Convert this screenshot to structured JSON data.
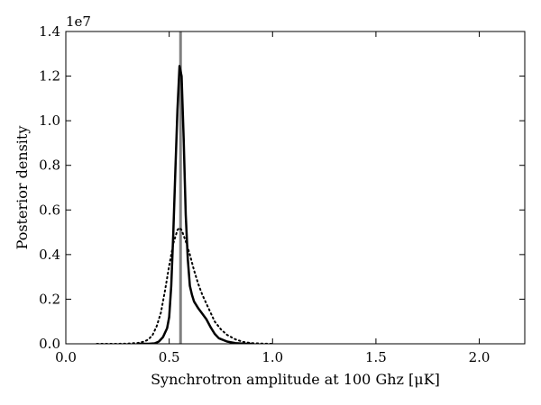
{
  "chart_data": {
    "type": "line",
    "xlabel": "Synchrotron amplitude at 100 Ghz [μK]",
    "ylabel": "Posterior density",
    "y_offset_label": "1e7",
    "xlim": [
      0.0,
      2.22
    ],
    "ylim": [
      0.0,
      1.4
    ],
    "xticks": [
      0.0,
      0.5,
      1.0,
      1.5,
      2.0
    ],
    "xtick_labels": [
      "0.0",
      "0.5",
      "1.0",
      "1.5",
      "2.0"
    ],
    "yticks": [
      0.0,
      0.2,
      0.4,
      0.6,
      0.8,
      1.0,
      1.2,
      1.4
    ],
    "ytick_labels": [
      "0.0",
      "0.2",
      "0.4",
      "0.6",
      "0.8",
      "1.0",
      "1.2",
      "1.4"
    ],
    "grid": false,
    "vertical_line": {
      "x": 0.555,
      "color": "#808080"
    },
    "series": [
      {
        "style": "solid",
        "color": "#000000",
        "x": [
          0.35,
          0.4,
          0.43,
          0.45,
          0.47,
          0.49,
          0.5,
          0.51,
          0.52,
          0.53,
          0.54,
          0.55,
          0.56,
          0.57,
          0.58,
          0.59,
          0.6,
          0.61,
          0.62,
          0.64,
          0.66,
          0.68,
          0.7,
          0.72,
          0.74,
          0.78,
          0.82,
          0.86,
          0.9
        ],
        "y": [
          0.0,
          0.0002,
          0.002,
          0.01,
          0.03,
          0.07,
          0.12,
          0.26,
          0.5,
          0.78,
          1.05,
          1.245,
          1.2,
          0.92,
          0.58,
          0.38,
          0.26,
          0.22,
          0.19,
          0.16,
          0.135,
          0.11,
          0.075,
          0.045,
          0.025,
          0.01,
          0.003,
          0.0005,
          0.0
        ]
      },
      {
        "style": "dotted",
        "color": "#000000",
        "x": [
          0.15,
          0.25,
          0.3,
          0.35,
          0.38,
          0.4,
          0.42,
          0.44,
          0.46,
          0.48,
          0.5,
          0.52,
          0.54,
          0.55,
          0.56,
          0.58,
          0.6,
          0.62,
          0.64,
          0.66,
          0.68,
          0.7,
          0.72,
          0.75,
          0.78,
          0.82,
          0.86,
          0.9,
          0.95,
          1.0
        ],
        "y": [
          0.0,
          0.0,
          0.001,
          0.004,
          0.01,
          0.02,
          0.04,
          0.08,
          0.14,
          0.24,
          0.35,
          0.45,
          0.51,
          0.52,
          0.51,
          0.46,
          0.4,
          0.33,
          0.27,
          0.22,
          0.18,
          0.14,
          0.1,
          0.065,
          0.04,
          0.02,
          0.008,
          0.003,
          0.001,
          0.0
        ]
      }
    ]
  }
}
